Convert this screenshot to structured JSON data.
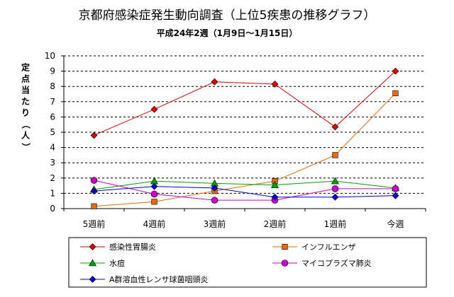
{
  "chart_data": {
    "type": "line",
    "title": "京都府感染症発生動向調査（上位5疾患の推移グラフ）",
    "subtitle": "平成24年2週（1月9日～1月15日）",
    "ylabel": "定点当たり（人）",
    "xlabel": "",
    "ylim": [
      0,
      10
    ],
    "yticks": [
      "0",
      "1",
      "2",
      "3",
      "4",
      "5",
      "6",
      "7",
      "8",
      "9",
      "10"
    ],
    "grid": true,
    "legend_position": "bottom",
    "categories": [
      "5週前",
      "4週前",
      "3週前",
      "2週前",
      "1週前",
      "今週"
    ],
    "series": [
      {
        "name": "感染性胃腸炎",
        "color": "#e00000",
        "marker": "diamond",
        "values": [
          4.8,
          6.5,
          8.3,
          8.15,
          5.35,
          9.0
        ]
      },
      {
        "name": "インフルエンザ",
        "color": "#e86a00",
        "marker": "square",
        "values": [
          0.15,
          0.45,
          1.15,
          1.8,
          3.5,
          7.55
        ]
      },
      {
        "name": "水痘",
        "color": "#00a000",
        "marker": "triangle",
        "values": [
          1.25,
          1.8,
          1.65,
          1.55,
          1.8,
          1.35
        ]
      },
      {
        "name": "マイコプラズマ肺炎",
        "color": "#cc00cc",
        "marker": "circle",
        "values": [
          1.85,
          0.95,
          0.55,
          0.55,
          1.3,
          1.3
        ]
      },
      {
        "name": "A群溶血性レンサ球菌咽頭炎",
        "color": "#0000dd",
        "marker": "diamond",
        "values": [
          1.15,
          1.45,
          1.35,
          0.75,
          0.75,
          0.85
        ]
      }
    ]
  }
}
